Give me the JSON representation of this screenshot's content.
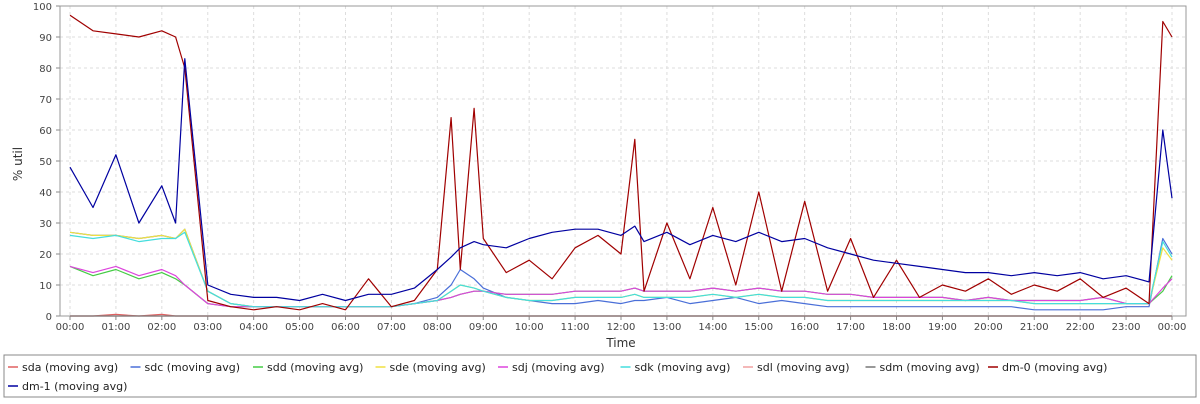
{
  "chart_data": {
    "type": "line",
    "xlabel": "Time",
    "ylabel": "% util",
    "ylim": [
      0,
      100
    ],
    "xlim": [
      "00:00",
      "00:00"
    ],
    "y_ticks": [
      0,
      10,
      20,
      30,
      40,
      50,
      60,
      70,
      80,
      90,
      100
    ],
    "x_ticks": [
      "00:00",
      "01:00",
      "02:00",
      "03:00",
      "04:00",
      "05:00",
      "06:00",
      "07:00",
      "08:00",
      "09:00",
      "10:00",
      "11:00",
      "12:00",
      "13:00",
      "14:00",
      "15:00",
      "16:00",
      "17:00",
      "18:00",
      "19:00",
      "20:00",
      "21:00",
      "22:00",
      "23:00",
      "00:00"
    ],
    "grid": true,
    "legend_position": "bottom",
    "x_hours": [
      0,
      0.5,
      1,
      1.5,
      2,
      2.3,
      2.5,
      3,
      3.5,
      4,
      4.5,
      5,
      5.5,
      6,
      6.5,
      7,
      7.5,
      8,
      8.3,
      8.5,
      8.8,
      9,
      9.5,
      10,
      10.5,
      11,
      11.5,
      12,
      12.3,
      12.5,
      13,
      13.5,
      14,
      14.5,
      15,
      15.5,
      16,
      16.5,
      17,
      17.5,
      18,
      18.5,
      19,
      19.5,
      20,
      20.5,
      21,
      21.5,
      22,
      22.5,
      23,
      23.5,
      23.8,
      24
    ],
    "series": [
      {
        "name": "sda (moving avg)",
        "color": "#e06060",
        "values": [
          0,
          0,
          0.5,
          0,
          0.5,
          0,
          0,
          0,
          0,
          0,
          0,
          0,
          0,
          0,
          0,
          0,
          0,
          0,
          0,
          0,
          0,
          0,
          0,
          0,
          0,
          0,
          0,
          0,
          0,
          0,
          0,
          0,
          0,
          0,
          0,
          0,
          0,
          0,
          0,
          0,
          0,
          0,
          0,
          0,
          0,
          0,
          0,
          0,
          0,
          0,
          0,
          0,
          0,
          0
        ]
      },
      {
        "name": "sdc (moving avg)",
        "color": "#4a6fd8",
        "values": [
          27,
          26,
          26,
          25,
          26,
          25,
          28,
          8,
          4,
          3,
          3,
          3,
          3,
          3,
          3,
          3,
          4,
          6,
          10,
          15,
          12,
          9,
          6,
          5,
          4,
          4,
          5,
          4,
          5,
          5,
          6,
          4,
          5,
          6,
          4,
          5,
          4,
          3,
          3,
          3,
          3,
          3,
          3,
          3,
          3,
          3,
          2,
          2,
          2,
          2,
          3,
          3,
          25,
          20
        ]
      },
      {
        "name": "sdd (moving avg)",
        "color": "#44cc44",
        "values": [
          16,
          13,
          15,
          12,
          14,
          12,
          10,
          4,
          3,
          3,
          3,
          3,
          3,
          3,
          3,
          3,
          4,
          5,
          6,
          7,
          8,
          8,
          7,
          7,
          7,
          8,
          8,
          8,
          9,
          8,
          8,
          8,
          9,
          8,
          9,
          8,
          8,
          7,
          7,
          6,
          6,
          6,
          6,
          5,
          6,
          5,
          5,
          5,
          5,
          6,
          4,
          4,
          8,
          13
        ]
      },
      {
        "name": "sde (moving avg)",
        "color": "#f0e040",
        "values": [
          27,
          26,
          26,
          25,
          26,
          25,
          28,
          8,
          4,
          3,
          3,
          3,
          3,
          3,
          3,
          3,
          4,
          5,
          8,
          10,
          9,
          8,
          6,
          5,
          5,
          6,
          6,
          6,
          7,
          6,
          6,
          6,
          7,
          6,
          7,
          6,
          6,
          5,
          5,
          5,
          5,
          5,
          5,
          5,
          5,
          5,
          4,
          4,
          4,
          4,
          4,
          4,
          22,
          18
        ]
      },
      {
        "name": "sdj (moving avg)",
        "color": "#dd44dd",
        "values": [
          16,
          14,
          16,
          13,
          15,
          13,
          10,
          4,
          3,
          3,
          3,
          3,
          3,
          3,
          3,
          3,
          4,
          5,
          6,
          7,
          8,
          8,
          7,
          7,
          7,
          8,
          8,
          8,
          9,
          8,
          8,
          8,
          9,
          8,
          9,
          8,
          8,
          7,
          7,
          6,
          6,
          6,
          6,
          5,
          6,
          5,
          5,
          5,
          5,
          6,
          4,
          4,
          9,
          12
        ]
      },
      {
        "name": "sdk (moving avg)",
        "color": "#44dddd",
        "values": [
          26,
          25,
          26,
          24,
          25,
          25,
          27,
          8,
          4,
          3,
          3,
          3,
          3,
          3,
          3,
          3,
          4,
          5,
          8,
          10,
          9,
          8,
          6,
          5,
          5,
          6,
          6,
          6,
          7,
          6,
          6,
          6,
          7,
          6,
          7,
          6,
          6,
          5,
          5,
          5,
          5,
          5,
          5,
          5,
          5,
          5,
          4,
          4,
          4,
          4,
          4,
          4,
          24,
          19
        ]
      },
      {
        "name": "sdl (moving avg)",
        "color": "#f0a0a0",
        "values": [
          0,
          0,
          0,
          0,
          0,
          0,
          0,
          0,
          0,
          0,
          0,
          0,
          0,
          0,
          0,
          0,
          0,
          0,
          0,
          0,
          0,
          0,
          0,
          0,
          0,
          0,
          0,
          0,
          0,
          0,
          0,
          0,
          0,
          0,
          0,
          0,
          0,
          0,
          0,
          0,
          0,
          0,
          0,
          0,
          0,
          0,
          0,
          0,
          0,
          0,
          0,
          0,
          0,
          0
        ]
      },
      {
        "name": "sdm (moving avg)",
        "color": "#777777",
        "values": [
          0,
          0,
          0,
          0,
          0,
          0,
          0,
          0,
          0,
          0,
          0,
          0,
          0,
          0,
          0,
          0,
          0,
          0,
          0,
          0,
          0,
          0,
          0,
          0,
          0,
          0,
          0,
          0,
          0,
          0,
          0,
          0,
          0,
          0,
          0,
          0,
          0,
          0,
          0,
          0,
          0,
          0,
          0,
          0,
          0,
          0,
          0,
          0,
          0,
          0,
          0,
          0,
          0,
          0
        ]
      },
      {
        "name": "dm-0 (moving avg)",
        "color": "#a00000",
        "values": [
          97,
          92,
          91,
          90,
          92,
          90,
          80,
          5,
          3,
          2,
          3,
          2,
          4,
          2,
          12,
          3,
          5,
          15,
          64,
          15,
          67,
          25,
          14,
          18,
          12,
          22,
          26,
          20,
          57,
          8,
          30,
          12,
          35,
          10,
          40,
          8,
          37,
          8,
          25,
          6,
          18,
          6,
          10,
          8,
          12,
          7,
          10,
          8,
          12,
          6,
          9,
          4,
          95,
          90
        ]
      },
      {
        "name": "dm-1 (moving avg)",
        "color": "#0000a0",
        "values": [
          48,
          35,
          52,
          30,
          42,
          30,
          83,
          10,
          7,
          6,
          6,
          5,
          7,
          5,
          7,
          7,
          9,
          15,
          19,
          22,
          24,
          23,
          22,
          25,
          27,
          28,
          28,
          26,
          29,
          24,
          27,
          23,
          26,
          24,
          27,
          24,
          25,
          22,
          20,
          18,
          17,
          16,
          15,
          14,
          14,
          13,
          14,
          13,
          14,
          12,
          13,
          11,
          60,
          38
        ]
      }
    ]
  }
}
